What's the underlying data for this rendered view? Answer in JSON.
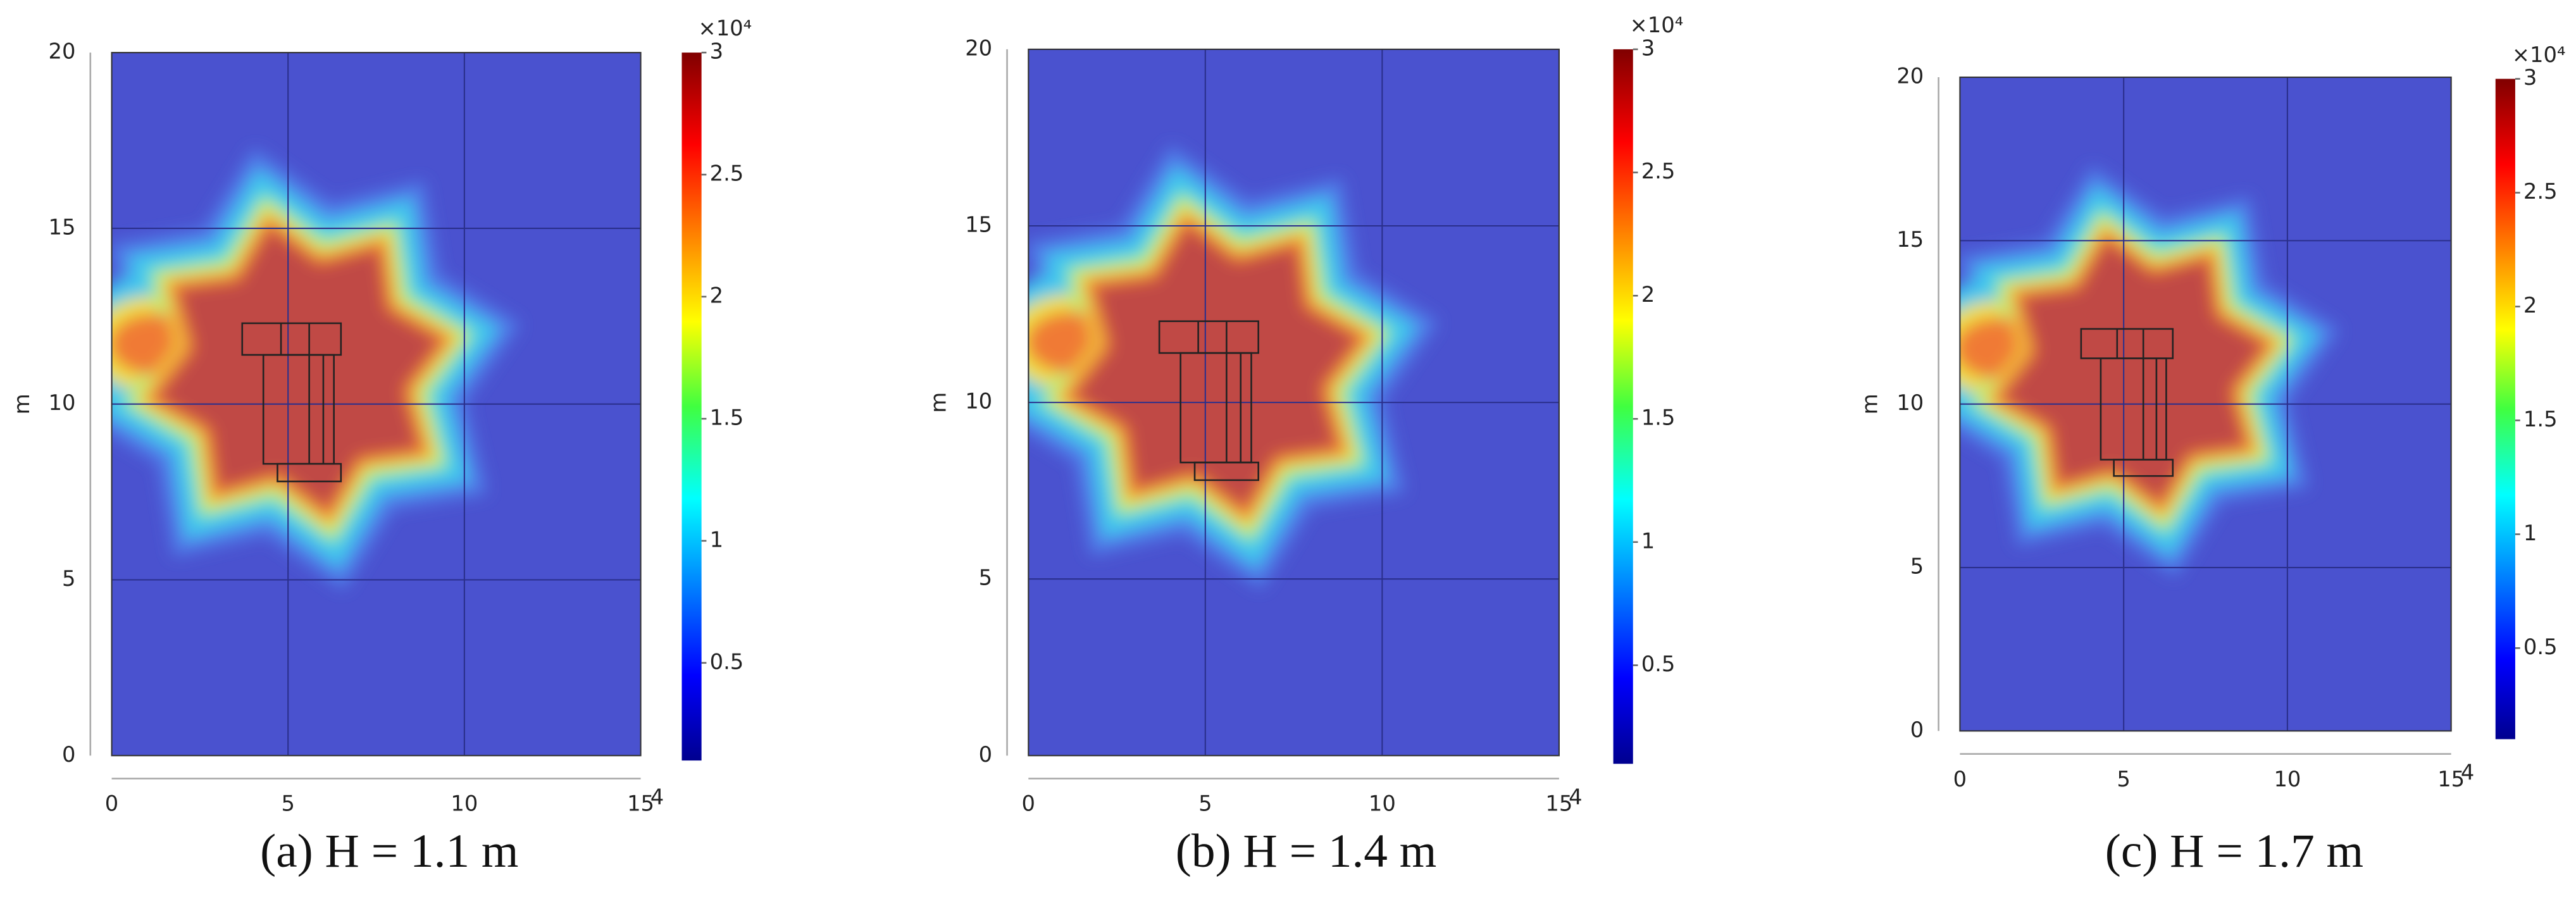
{
  "chart_data": [
    {
      "type": "heatmap",
      "title": "(a) H = 1.1 m",
      "ylabel": "m",
      "x_axis_note": "4",
      "xlim": [
        0,
        15
      ],
      "xticks": [
        0,
        5,
        10,
        15
      ],
      "ylim": [
        0,
        20
      ],
      "yticks": [
        0,
        5,
        10,
        15,
        20
      ],
      "grid": true,
      "colorbar_multiplier": "×10⁴",
      "clim": [
        0.1,
        3
      ],
      "colorbar_ticks": [
        0.5,
        1,
        1.5,
        2,
        2.5,
        3
      ]
    },
    {
      "type": "heatmap",
      "title": "(b) H = 1.4 m",
      "ylabel": "m",
      "x_axis_note": "4",
      "xlim": [
        0,
        15
      ],
      "xticks": [
        0,
        5,
        10,
        15
      ],
      "ylim": [
        0,
        20
      ],
      "yticks": [
        0,
        5,
        10,
        15,
        20
      ],
      "grid": true,
      "colorbar_multiplier": "×10⁴",
      "clim": [
        0.1,
        3
      ],
      "colorbar_ticks": [
        0.5,
        1,
        1.5,
        2,
        2.5,
        3
      ]
    },
    {
      "type": "heatmap",
      "title": "(c) H = 1.7 m",
      "ylabel": "m",
      "x_axis_note": "4",
      "xlim": [
        0,
        15
      ],
      "xticks": [
        0,
        5,
        10,
        15
      ],
      "ylim": [
        0,
        20
      ],
      "yticks": [
        0,
        5,
        10,
        15,
        20
      ],
      "grid": true,
      "colorbar_multiplier": "×10⁴",
      "clim": [
        0.1,
        3
      ],
      "colorbar_ticks": [
        0.5,
        1,
        1.5,
        2,
        2.5,
        3
      ]
    }
  ]
}
